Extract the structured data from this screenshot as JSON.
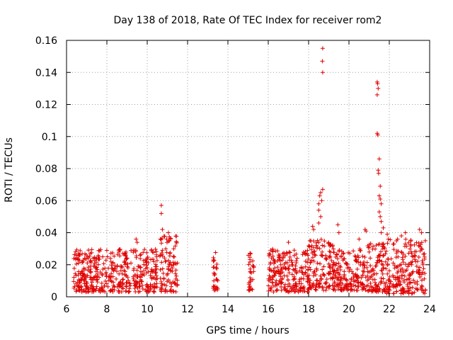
{
  "chart_data": {
    "type": "scatter",
    "title": "Day 138 of 2018, Rate Of TEC Index for receiver rom2",
    "xlabel": "GPS time / hours",
    "ylabel": "ROTI / TECUs",
    "xlim": [
      6,
      24
    ],
    "ylim": [
      0,
      0.16
    ],
    "xticks": [
      6,
      8,
      10,
      12,
      14,
      16,
      18,
      20,
      22,
      24
    ],
    "yticks": [
      0,
      0.02,
      0.04,
      0.06,
      0.08,
      0.1,
      0.12,
      0.14,
      0.16
    ],
    "xtick_labels": [
      "6",
      "8",
      "10",
      "12",
      "14",
      "16",
      "18",
      "20",
      "22",
      "24"
    ],
    "ytick_labels": [
      "0",
      "0.02",
      "0.04",
      "0.06",
      "0.08",
      "0.1",
      "0.12",
      "0.14",
      "0.16"
    ],
    "grid": true,
    "marker": "+",
    "color": "#e00000",
    "dense_segments": [
      {
        "x_start": 6.35,
        "x_end": 9.2,
        "y_low": 0.003,
        "y_high": 0.03
      },
      {
        "x_start": 9.3,
        "x_end": 10.5,
        "y_low": 0.003,
        "y_high": 0.03
      },
      {
        "x_start": 10.6,
        "x_end": 11.5,
        "y_low": 0.003,
        "y_high": 0.038
      },
      {
        "x_start": 13.25,
        "x_end": 13.5,
        "y_low": 0.004,
        "y_high": 0.028
      },
      {
        "x_start": 15.0,
        "x_end": 15.3,
        "y_low": 0.004,
        "y_high": 0.028
      },
      {
        "x_start": 16.0,
        "x_end": 18.0,
        "y_low": 0.003,
        "y_high": 0.03
      },
      {
        "x_start": 18.0,
        "x_end": 19.2,
        "y_low": 0.004,
        "y_high": 0.036
      },
      {
        "x_start": 19.2,
        "x_end": 20.8,
        "y_low": 0.004,
        "y_high": 0.03
      },
      {
        "x_start": 20.8,
        "x_end": 21.8,
        "y_low": 0.003,
        "y_high": 0.034
      },
      {
        "x_start": 21.8,
        "x_end": 23.8,
        "y_low": 0.002,
        "y_high": 0.036
      }
    ],
    "outliers": [
      {
        "x": 10.7,
        "y": 0.057
      },
      {
        "x": 10.7,
        "y": 0.052
      },
      {
        "x": 10.75,
        "y": 0.042
      },
      {
        "x": 9.45,
        "y": 0.036
      },
      {
        "x": 9.5,
        "y": 0.034
      },
      {
        "x": 11.05,
        "y": 0.04
      },
      {
        "x": 18.2,
        "y": 0.044
      },
      {
        "x": 18.25,
        "y": 0.042
      },
      {
        "x": 18.5,
        "y": 0.058
      },
      {
        "x": 18.5,
        "y": 0.054
      },
      {
        "x": 18.55,
        "y": 0.063
      },
      {
        "x": 18.6,
        "y": 0.065
      },
      {
        "x": 18.7,
        "y": 0.067
      },
      {
        "x": 18.65,
        "y": 0.06
      },
      {
        "x": 18.6,
        "y": 0.05
      },
      {
        "x": 18.5,
        "y": 0.046
      },
      {
        "x": 18.7,
        "y": 0.155
      },
      {
        "x": 18.68,
        "y": 0.147
      },
      {
        "x": 18.7,
        "y": 0.14
      },
      {
        "x": 19.45,
        "y": 0.045
      },
      {
        "x": 19.5,
        "y": 0.04
      },
      {
        "x": 20.8,
        "y": 0.042
      },
      {
        "x": 20.85,
        "y": 0.041
      },
      {
        "x": 21.4,
        "y": 0.134
      },
      {
        "x": 21.42,
        "y": 0.133
      },
      {
        "x": 21.45,
        "y": 0.13
      },
      {
        "x": 21.4,
        "y": 0.126
      },
      {
        "x": 21.4,
        "y": 0.102
      },
      {
        "x": 21.43,
        "y": 0.101
      },
      {
        "x": 21.5,
        "y": 0.086
      },
      {
        "x": 21.45,
        "y": 0.079
      },
      {
        "x": 21.47,
        "y": 0.077
      },
      {
        "x": 21.55,
        "y": 0.069
      },
      {
        "x": 21.5,
        "y": 0.063
      },
      {
        "x": 21.55,
        "y": 0.061
      },
      {
        "x": 21.6,
        "y": 0.058
      },
      {
        "x": 21.5,
        "y": 0.053
      },
      {
        "x": 21.55,
        "y": 0.05
      },
      {
        "x": 21.6,
        "y": 0.047
      },
      {
        "x": 21.7,
        "y": 0.043
      },
      {
        "x": 21.6,
        "y": 0.04
      },
      {
        "x": 21.9,
        "y": 0.039
      },
      {
        "x": 21.95,
        "y": 0.036
      },
      {
        "x": 22.8,
        "y": 0.04
      },
      {
        "x": 23.5,
        "y": 0.042
      },
      {
        "x": 23.6,
        "y": 0.04
      },
      {
        "x": 22.6,
        "y": 0.038
      },
      {
        "x": 11.1,
        "y": 0.035
      },
      {
        "x": 17.0,
        "y": 0.034
      },
      {
        "x": 20.5,
        "y": 0.036
      }
    ]
  }
}
